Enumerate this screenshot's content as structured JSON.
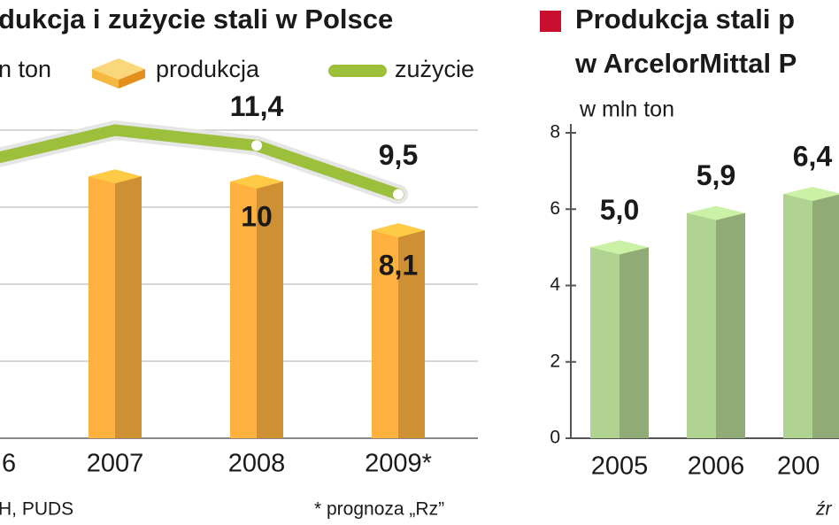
{
  "chart_data": [
    {
      "type": "bar_line",
      "title": "dukcja i zużycie stali w Polsce",
      "subtitle": "n ton",
      "categories": [
        "6",
        "2007",
        "2008",
        "2009*"
      ],
      "series": [
        {
          "name": "produkcja",
          "type": "bar",
          "color": "#f2a93b",
          "values": [
            null,
            10.2,
            10,
            8.1
          ],
          "value_labels": [
            null,
            null,
            "10",
            "8,1"
          ]
        },
        {
          "name": "zużycie",
          "type": "line",
          "color": "#9cbf3c",
          "values": [
            10.7,
            12,
            11.4,
            9.5
          ],
          "value_labels": [
            null,
            null,
            "11,4",
            "9,5"
          ]
        }
      ],
      "ylim": [
        0,
        14
      ],
      "yticks": [
        0,
        3,
        6,
        9,
        12
      ],
      "ytick_labels_shown": false,
      "grid": true,
      "source": "H, PUDS",
      "note": "* prognoza „Rz”"
    },
    {
      "type": "bar",
      "title": "Produkcja stali p",
      "subtitle": "w ArcelorMittal P",
      "ylabel": "w mln ton",
      "categories": [
        "2005",
        "2006",
        "200"
      ],
      "values": [
        5.0,
        5.9,
        6.4
      ],
      "value_labels": [
        "5,0",
        "5,9",
        "6,4"
      ],
      "color": "#a9c98a",
      "ylim": [
        0,
        8
      ],
      "yticks": [
        0,
        2,
        4,
        6,
        8
      ],
      "grid": false,
      "source": "źr"
    }
  ]
}
